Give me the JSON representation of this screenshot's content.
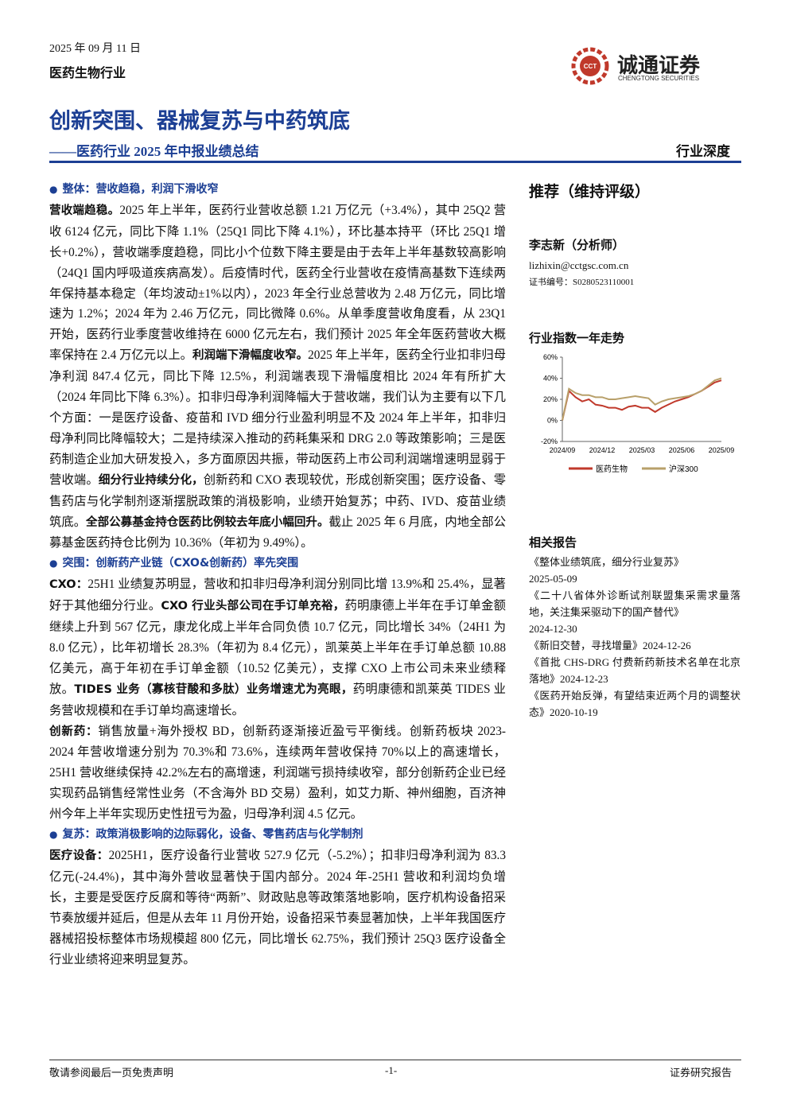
{
  "header": {
    "date": "2025 年 09 月 11 日",
    "industry": "医药生物行业",
    "logo_mark": "CCT",
    "company_name": "诚通证券",
    "company_en": "CHENGTONG SECURITIES",
    "title": "创新突围、器械复苏与中药筑底",
    "subtitle": "——医药行业 2025 年中报业绩总结",
    "tag": "行业深度"
  },
  "sections": [
    {
      "heading": "整体：营收趋稳，利润下滑收窄",
      "paragraphs": [
        [
          {
            "text": "营收端趋稳。",
            "bold": true
          },
          {
            "text": "2025 年上半年，医药行业营收总额 1.21 万亿元（+3.4%），其中 25Q2 营收 6124 亿元，同比下降 1.1%（25Q1 同比下降 4.1%），环比基本持平（环比 25Q1 增长+0.2%），营收端季度趋稳，同比小个位数下降主要是由于去年上半年基数较高影响（24Q1 国内呼吸道疾病高发）。后疫情时代，医药全行业营收在疫情高基数下连续两年保持基本稳定（年均波动±1%以内），2023 年全行业总营收为 2.48 万亿元，同比增速为 1.2%；2024 年为 2.46 万亿元，同比微降 0.6%。从单季度营收角度看，从 23Q1 开始，医药行业季度营收维持在 6000 亿元左右，我们预计 2025 年全年医药营收大概率保持在 2.4 万亿元以上。",
            "bold": false
          },
          {
            "text": "利润端下滑幅度收窄。",
            "bold": true
          },
          {
            "text": "2025 年上半年，医药全行业扣非归母净利润 847.4 亿元，同比下降 12.5%，利润端表现下滑幅度相比 2024 年有所扩大（2024 年同比下降 6.3%）。扣非归母净利润降幅大于营收端，我们认为主要有以下几个方面：一是医疗设备、疫苗和 IVD 细分行业盈利明显不及 2024 年上半年，扣非归母净利同比降幅较大；二是持续深入推动的药耗集采和 DRG 2.0 等政策影响；三是医药制造企业加大研发投入，多方面原因共振，带动医药上市公司利润端增速明显弱于营收端。",
            "bold": false
          },
          {
            "text": "细分行业持续分化，",
            "bold": true
          },
          {
            "text": "创新药和 CXO 表现较优，形成创新突围；医疗设备、零售药店与化学制剂逐渐摆脱政策的消极影响，业绩开始复苏；中药、IVD、疫苗业绩筑底。",
            "bold": false
          },
          {
            "text": "全部公募基金持仓医药比例较去年底小幅回升。",
            "bold": true
          },
          {
            "text": "截止 2025 年 6 月底，内地全部公募基金医药持仓比例为 10.36%（年初为 9.49%）。",
            "bold": false
          }
        ]
      ]
    },
    {
      "heading": "突围：创新药产业链（CXO&创新药）率先突围",
      "paragraphs": [
        [
          {
            "text": "CXO：",
            "bold": true
          },
          {
            "text": "25H1 业绩复苏明显，营收和扣非归母净利润分别同比增 13.9%和 25.4%，显著好于其他细分行业。",
            "bold": false
          },
          {
            "text": "CXO 行业头部公司在手订单充裕，",
            "bold": true
          },
          {
            "text": "药明康德上半年在手订单金额继续上升到 567 亿元，康龙化成上半年合同负债 10.7 亿元，同比增长 34%（24H1 为 8.0 亿元），比年初增长 28.3%（年初为 8.4 亿元），凯莱英上半年在手订单总额 10.88 亿美元，高于年初在手订单金额（10.52 亿美元），支撑 CXO 上市公司未来业绩释放。",
            "bold": false
          },
          {
            "text": "TIDES 业务（寡核苷酸和多肽）业务增速尤为亮眼，",
            "bold": true
          },
          {
            "text": "药明康德和凯莱英 TIDES 业务营收规模和在手订单均高速增长。",
            "bold": false
          }
        ],
        [
          {
            "text": "创新药：",
            "bold": true
          },
          {
            "text": "销售放量+海外授权 BD，创新药逐渐接近盈亏平衡线。创新药板块 2023-2024 年营收增速分别为 70.3%和 73.6%，连续两年营收保持 70%以上的高速增长，25H1 营收继续保持 42.2%左右的高增速，利润端亏损持续收窄，部分创新药企业已经实现药品销售经常性业务（不含海外 BD 交易）盈利，如艾力斯、神州细胞，百济神州今年上半年实现历史性扭亏为盈，归母净利润 4.5 亿元。",
            "bold": false
          }
        ]
      ]
    },
    {
      "heading": "复苏：政策消极影响的边际弱化，设备、零售药店与化学制剂",
      "paragraphs": [
        [
          {
            "text": "医疗设备：",
            "bold": true
          },
          {
            "text": "2025H1，医疗设备行业营收 527.9 亿元（-5.2%）；扣非归母净利润为 83.3 亿元(-24.4%)，其中海外营收显著快于国内部分。2024 年-25H1 营收和利润均负增长，主要是受医疗反腐和等待“两新”、财政贴息等政策落地影响，医疗机构设备招采节奏放缓并延后，但是从去年 11 月份开始，设备招采节奏显著加快，上半年我国医疗器械招投标整体市场规模超 800 亿元，同比增长 62.75%，我们预计 25Q3 医疗设备全行业业绩将迎来明显复苏。",
            "bold": false
          }
        ]
      ]
    }
  ],
  "sidebar": {
    "rating": "推荐（维持评级）",
    "analyst": "李志新（分析师）",
    "email": "lizhixin@cctgsc.com.cn",
    "certificate": "证书编号：S0280523110001",
    "chart_title": "行业指数一年走势",
    "related_title": "相关报告",
    "related": [
      {
        "title": "《整体业绩筑底，细分行业复苏》",
        "date": "2025-05-09"
      },
      {
        "title": "《二十八省体外诊断试剂联盟集采需求量落地，关注集采驱动下的国产替代》",
        "date": "2024-12-30"
      },
      {
        "title": "《新旧交替，寻找增量》",
        "date": "2024-12-26"
      },
      {
        "title": "《首批 CHS-DRG 付费新药新技术名单在北京落地》",
        "date": "2024-12-23"
      },
      {
        "title": "《医药开始反弹，有望结束近两个月的调整状态》",
        "date": "2020-10-19"
      }
    ]
  },
  "chart_data": {
    "type": "line",
    "categories": [
      "2024/09",
      null,
      null,
      null,
      null,
      null,
      "2024/12",
      null,
      null,
      null,
      null,
      null,
      "2025/03",
      null,
      null,
      null,
      null,
      null,
      "2025/06",
      null,
      null,
      null,
      null,
      null,
      "2025/09"
    ],
    "series": [
      {
        "name": "医药生物",
        "color": "#c0392b",
        "values": [
          0,
          28,
          22,
          18,
          20,
          15,
          14,
          12,
          12,
          10,
          13,
          14,
          12,
          12,
          8,
          12,
          15,
          18,
          20,
          22,
          25,
          28,
          32,
          36,
          38
        ]
      },
      {
        "name": "沪深300",
        "color": "#b8a06a",
        "values": [
          0,
          30,
          26,
          24,
          24,
          22,
          22,
          20,
          20,
          21,
          22,
          23,
          22,
          21,
          15,
          18,
          20,
          21,
          22,
          23,
          25,
          28,
          33,
          38,
          40
        ]
      }
    ],
    "ylim": [
      -20,
      60
    ],
    "yticks": [
      {
        "value": -20,
        "label": "-20%"
      },
      {
        "value": 0,
        "label": "0%"
      },
      {
        "value": 20,
        "label": "20%"
      },
      {
        "value": 40,
        "label": "40%"
      },
      {
        "value": 60,
        "label": "60%"
      }
    ]
  },
  "footer": {
    "disclaimer": "敬请参阅最后一页免责声明",
    "page": "-1-",
    "report_type": "证券研究报告"
  }
}
